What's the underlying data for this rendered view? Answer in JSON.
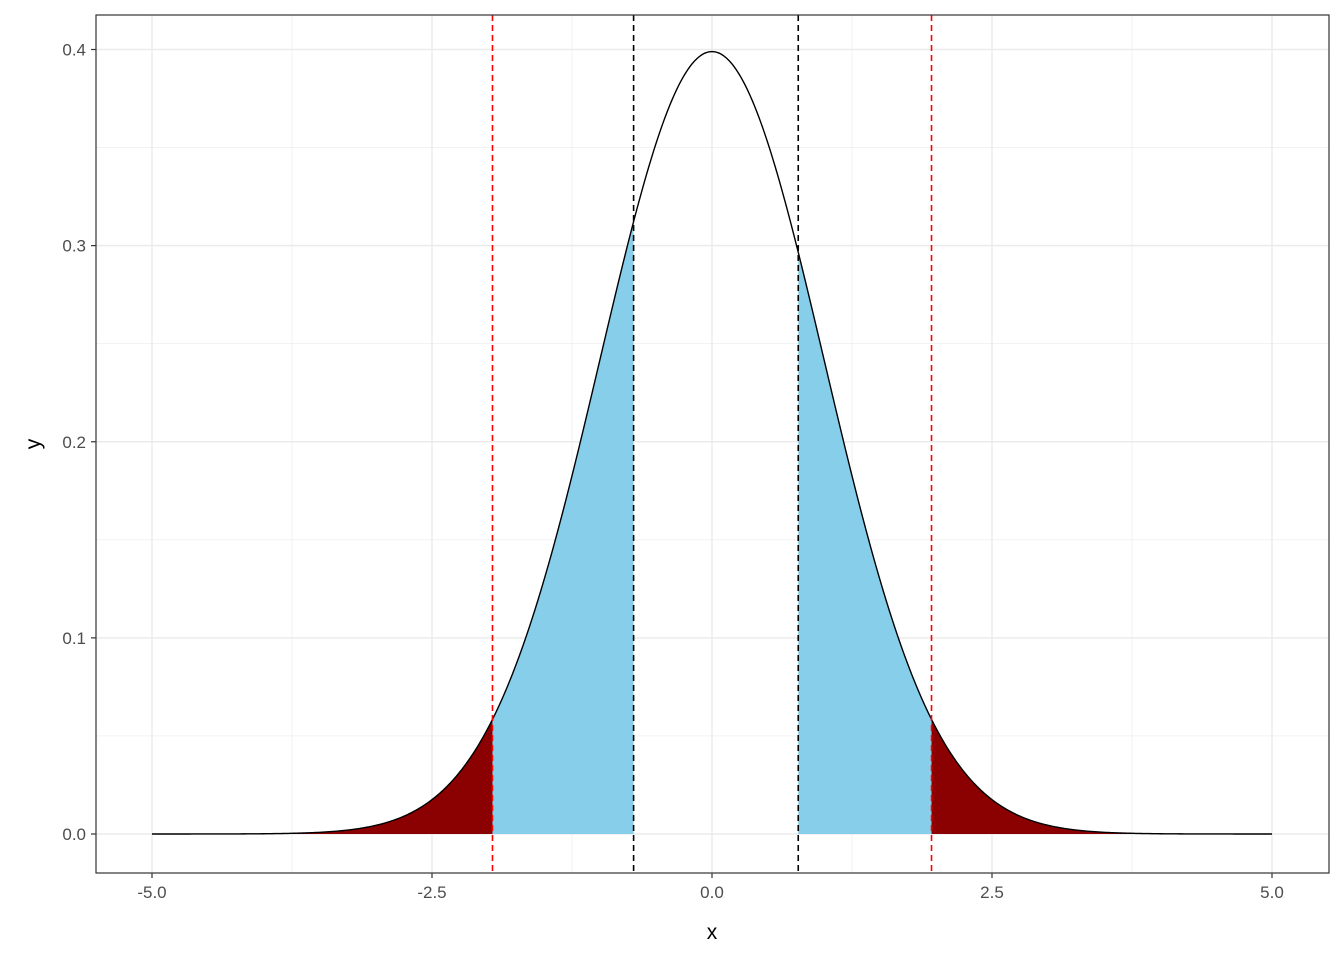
{
  "chart_data": {
    "type": "area",
    "title": "",
    "xlabel": "x",
    "ylabel": "y",
    "xlim": [
      -5,
      5
    ],
    "ylim": [
      0,
      0.4
    ],
    "x_ticks": [
      "-5.0",
      "-2.5",
      "0.0",
      "2.5",
      "5.0"
    ],
    "y_ticks": [
      "0.0",
      "0.1",
      "0.2",
      "0.3",
      "0.4"
    ],
    "grid": true,
    "legend": "none",
    "curve": {
      "name": "",
      "mean": 0,
      "sd": 1,
      "color": "#000000",
      "x": [
        -5,
        -4.5,
        -4,
        -3.5,
        -3,
        -2.5,
        -2,
        -1.5,
        -1,
        -0.5,
        0,
        0.5,
        1,
        1.5,
        2,
        2.5,
        3,
        3.5,
        4,
        4.5,
        5
      ],
      "y": [
        1.5e-06,
        1.6e-05,
        0.000134,
        0.000873,
        0.004432,
        0.017528,
        0.053991,
        0.129518,
        0.241971,
        0.352065,
        0.398942,
        0.352065,
        0.241971,
        0.129518,
        0.053991,
        0.017528,
        0.004432,
        0.000873,
        0.000134,
        1.6e-05,
        1.5e-06
      ]
    },
    "shaded_regions": [
      {
        "from": -5,
        "to": -1.96,
        "color": "#8b0000"
      },
      {
        "from": -1.96,
        "to": -0.7,
        "color": "#87ceeb"
      },
      {
        "from": 0.77,
        "to": 1.96,
        "color": "#87ceeb"
      },
      {
        "from": 1.96,
        "to": 5,
        "color": "#8b0000"
      }
    ],
    "vlines": [
      {
        "x": -1.96,
        "color": "#ff0000",
        "dash": "dashed"
      },
      {
        "x": -0.7,
        "color": "#000000",
        "dash": "dashed"
      },
      {
        "x": 0.77,
        "color": "#000000",
        "dash": "dashed"
      },
      {
        "x": 1.96,
        "color": "#ff0000",
        "dash": "dashed"
      }
    ]
  }
}
